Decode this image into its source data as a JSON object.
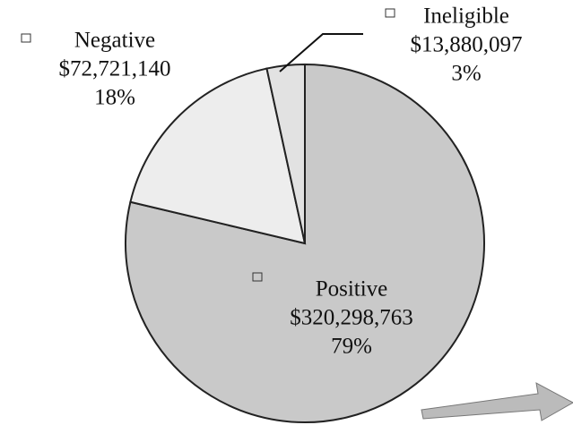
{
  "chart_data": {
    "type": "pie",
    "categories": [
      "Positive",
      "Negative",
      "Ineligible"
    ],
    "values": [
      320298763,
      72721140,
      13880097
    ],
    "value_labels": [
      "$320,298,763",
      "$72,721,140",
      "$13,880,097"
    ],
    "percent_labels": [
      "79%",
      "18%",
      "3%"
    ],
    "colors": [
      "#c9c9c9",
      "#ededed",
      "#e2e2e2"
    ],
    "start_angle": 0,
    "direction": "clockwise"
  }
}
